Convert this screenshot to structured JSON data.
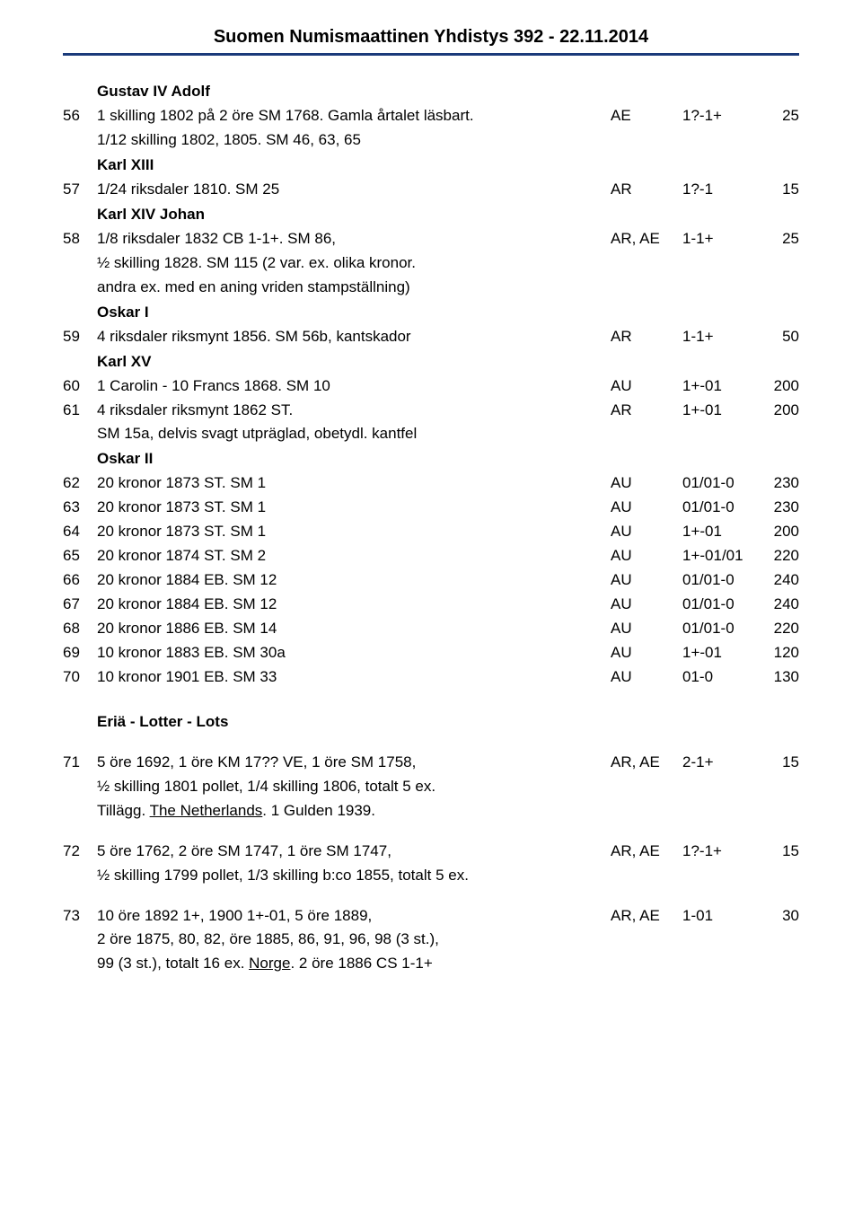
{
  "header": {
    "title": "Suomen Numismaattinen Yhdistys 392 - 22.11.2014"
  },
  "sections": {
    "gustav_iv_adolf": "Gustav IV Adolf",
    "karl_xiii": "Karl XIII",
    "karl_xiv_johan": "Karl XIV Johan",
    "oskar_i": "Oskar I",
    "karl_xv": "Karl XV",
    "oskar_ii": "Oskar II",
    "eria": "Eriä - Lotter - Lots"
  },
  "lots": {
    "56": {
      "num": "56",
      "desc1": "1 skilling 1802 på 2 öre SM 1768. Gamla årtalet läsbart.",
      "desc2": "1/12 skilling 1802, 1805. SM 46, 63, 65",
      "metal": "AE",
      "grade": "1?-1+",
      "price": "25"
    },
    "57": {
      "num": "57",
      "desc": "1/24 riksdaler 1810. SM 25",
      "metal": "AR",
      "grade": "1?-1",
      "price": "15"
    },
    "58": {
      "num": "58",
      "desc1": "1/8 riksdaler 1832 CB 1-1+. SM 86,",
      "desc2": "½ skilling 1828. SM 115 (2 var. ex. olika kronor.",
      "desc3": "andra ex. med en aning vriden stampställning)",
      "metal": "AR, AE",
      "grade": "1-1+",
      "price": "25"
    },
    "59": {
      "num": "59",
      "desc": "4 riksdaler riksmynt 1856. SM 56b, kantskador",
      "metal": "AR",
      "grade": "1-1+",
      "price": "50"
    },
    "60": {
      "num": "60",
      "desc": "1 Carolin - 10 Francs 1868. SM 10",
      "metal": "AU",
      "grade": "1+-01",
      "price": "200"
    },
    "61": {
      "num": "61",
      "desc1": "4 riksdaler riksmynt 1862 ST.",
      "desc2": "SM 15a, delvis svagt utpräglad, obetydl. kantfel",
      "metal": "AR",
      "grade": "1+-01",
      "price": "200"
    },
    "62": {
      "num": "62",
      "desc": "20 kronor 1873 ST. SM 1",
      "metal": "AU",
      "grade": "01/01-0",
      "price": "230"
    },
    "63": {
      "num": "63",
      "desc": "20 kronor 1873 ST. SM 1",
      "metal": "AU",
      "grade": "01/01-0",
      "price": "230"
    },
    "64": {
      "num": "64",
      "desc": "20 kronor 1873 ST. SM 1",
      "metal": "AU",
      "grade": "1+-01",
      "price": "200"
    },
    "65": {
      "num": "65",
      "desc": "20 kronor 1874 ST. SM 2",
      "metal": "AU",
      "grade": "1+-01/01",
      "price": "220"
    },
    "66": {
      "num": "66",
      "desc": "20 kronor 1884 EB. SM 12",
      "metal": "AU",
      "grade": "01/01-0",
      "price": "240"
    },
    "67": {
      "num": "67",
      "desc": "20 kronor 1884 EB. SM 12",
      "metal": "AU",
      "grade": "01/01-0",
      "price": "240"
    },
    "68": {
      "num": "68",
      "desc": "20 kronor 1886 EB. SM 14",
      "metal": "AU",
      "grade": "01/01-0",
      "price": "220"
    },
    "69": {
      "num": "69",
      "desc": "10 kronor 1883 EB. SM 30a",
      "metal": "AU",
      "grade": "1+-01",
      "price": "120"
    },
    "70": {
      "num": "70",
      "desc": "10 kronor 1901 EB. SM 33",
      "metal": "AU",
      "grade": "01-0",
      "price": "130"
    },
    "71": {
      "num": "71",
      "desc1": "5 öre 1692, 1 öre KM 17?? VE, 1 öre SM 1758,",
      "desc2": "½ skilling 1801 pollet, 1/4 skilling 1806, totalt 5 ex.",
      "desc3a": "Tillägg. ",
      "desc3u": "The Netherlands",
      "desc3b": ". 1 Gulden 1939.",
      "metal": "AR, AE",
      "grade": "2-1+",
      "price": "15"
    },
    "72": {
      "num": "72",
      "desc1": "5 öre 1762, 2 öre SM 1747, 1 öre SM 1747,",
      "desc2": "½ skilling 1799 pollet, 1/3 skilling b:co 1855, totalt 5 ex.",
      "metal": "AR, AE",
      "grade": "1?-1+",
      "price": "15"
    },
    "73": {
      "num": "73",
      "desc1": "10 öre 1892 1+, 1900 1+-01, 5 öre 1889,",
      "desc2": "2 öre 1875, 80, 82, öre 1885, 86, 91, 96, 98 (3 st.),",
      "desc3a": "99 (3 st.), totalt 16 ex. ",
      "desc3u": "Norge",
      "desc3b": ". 2 öre 1886 CS 1-1+",
      "metal": "AR, AE",
      "grade": "1-01",
      "price": "30"
    }
  }
}
